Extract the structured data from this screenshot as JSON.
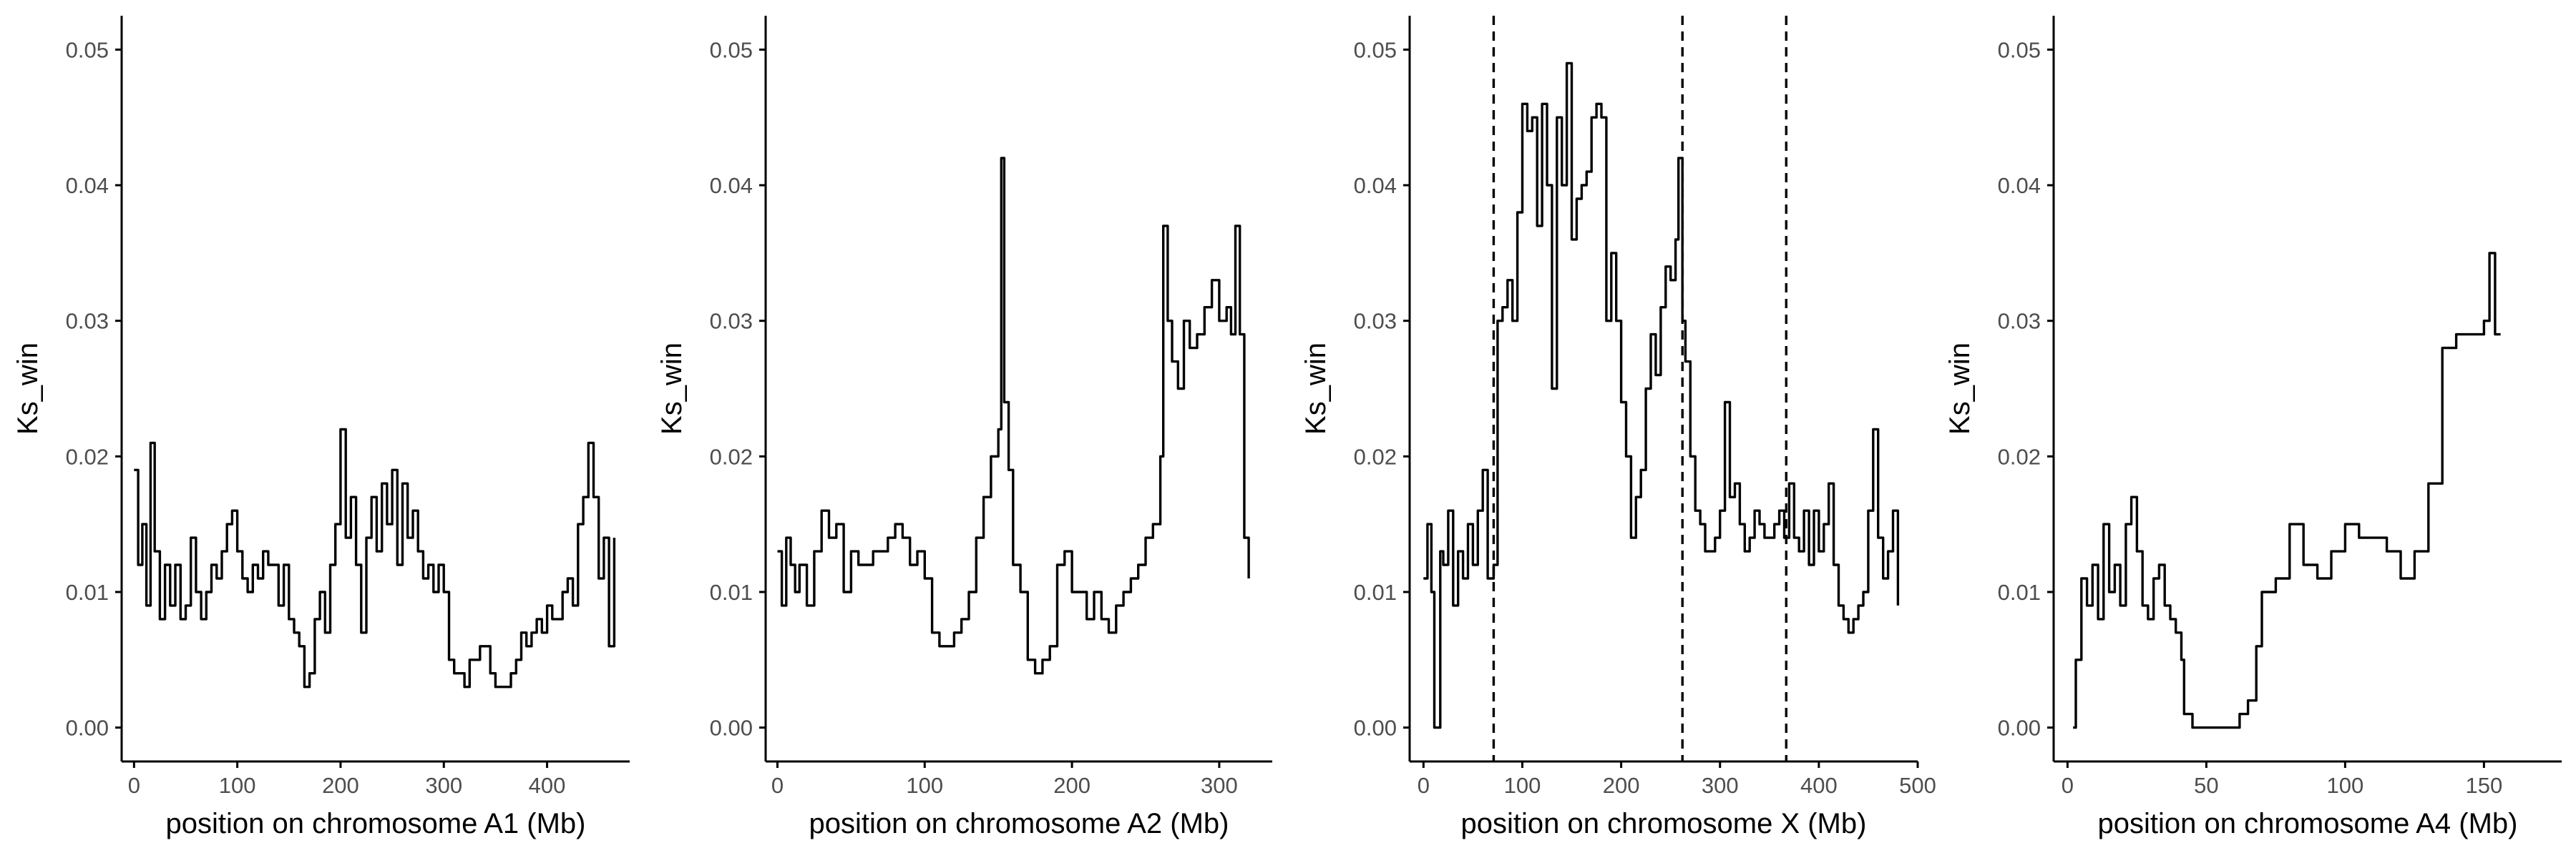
{
  "chart_data": [
    {
      "type": "line",
      "xlabel": "position on chromosome A1 (Mb)",
      "ylabel": "Ks_win",
      "xlim": [
        -12,
        480
      ],
      "ylim": [
        -0.0025,
        0.0525
      ],
      "xticks": [
        0,
        100,
        200,
        300,
        400
      ],
      "yticks": [
        "0.00",
        "0.01",
        "0.02",
        "0.03",
        "0.04",
        "0.05"
      ],
      "ytick_values": [
        0,
        0.01,
        0.02,
        0.03,
        0.04,
        0.05
      ],
      "vlines": [],
      "grid": false,
      "x": [
        0,
        4,
        8,
        12,
        16,
        20,
        25,
        30,
        35,
        40,
        45,
        50,
        55,
        60,
        65,
        70,
        75,
        80,
        85,
        90,
        95,
        100,
        105,
        110,
        115,
        120,
        125,
        130,
        135,
        140,
        145,
        150,
        155,
        160,
        165,
        170,
        175,
        180,
        185,
        190,
        195,
        200,
        205,
        210,
        215,
        220,
        225,
        230,
        235,
        240,
        245,
        250,
        255,
        260,
        265,
        270,
        275,
        280,
        285,
        290,
        295,
        300,
        305,
        310,
        315,
        320,
        325,
        330,
        335,
        340,
        345,
        350,
        355,
        360,
        365,
        370,
        375,
        380,
        385,
        390,
        395,
        400,
        405,
        410,
        415,
        420,
        425,
        430,
        435,
        440,
        445,
        450,
        455,
        460,
        465
      ],
      "y": [
        0.019,
        0.012,
        0.015,
        0.009,
        0.021,
        0.013,
        0.008,
        0.012,
        0.009,
        0.012,
        0.008,
        0.009,
        0.014,
        0.01,
        0.008,
        0.01,
        0.012,
        0.011,
        0.013,
        0.015,
        0.016,
        0.013,
        0.011,
        0.01,
        0.012,
        0.011,
        0.013,
        0.012,
        0.012,
        0.009,
        0.012,
        0.008,
        0.007,
        0.006,
        0.003,
        0.004,
        0.008,
        0.01,
        0.007,
        0.012,
        0.015,
        0.022,
        0.014,
        0.017,
        0.012,
        0.007,
        0.014,
        0.017,
        0.013,
        0.018,
        0.015,
        0.019,
        0.012,
        0.018,
        0.014,
        0.016,
        0.013,
        0.011,
        0.012,
        0.01,
        0.012,
        0.01,
        0.005,
        0.004,
        0.004,
        0.003,
        0.005,
        0.005,
        0.006,
        0.006,
        0.004,
        0.003,
        0.003,
        0.003,
        0.004,
        0.005,
        0.007,
        0.006,
        0.007,
        0.008,
        0.007,
        0.009,
        0.008,
        0.008,
        0.01,
        0.011,
        0.009,
        0.015,
        0.017,
        0.021,
        0.017,
        0.011,
        0.014,
        0.006,
        0.014
      ]
    },
    {
      "type": "line",
      "xlabel": "position on chromosome A2 (Mb)",
      "ylabel": "Ks_win",
      "xlim": [
        -8,
        336
      ],
      "ylim": [
        -0.0025,
        0.0525
      ],
      "xticks": [
        0,
        100,
        200,
        300
      ],
      "yticks": [
        "0.00",
        "0.01",
        "0.02",
        "0.03",
        "0.04",
        "0.05"
      ],
      "ytick_values": [
        0,
        0.01,
        0.02,
        0.03,
        0.04,
        0.05
      ],
      "vlines": [],
      "grid": false,
      "x": [
        0,
        3,
        6,
        9,
        12,
        15,
        20,
        25,
        30,
        35,
        40,
        45,
        50,
        55,
        60,
        65,
        70,
        75,
        80,
        85,
        90,
        95,
        100,
        105,
        110,
        115,
        120,
        125,
        130,
        135,
        140,
        145,
        150,
        152,
        154,
        157,
        160,
        165,
        170,
        175,
        180,
        185,
        190,
        195,
        200,
        205,
        210,
        215,
        220,
        225,
        230,
        235,
        240,
        245,
        250,
        255,
        260,
        262,
        265,
        268,
        272,
        276,
        280,
        285,
        290,
        295,
        300,
        305,
        308,
        311,
        314,
        317,
        320
      ],
      "y": [
        0.013,
        0.009,
        0.014,
        0.012,
        0.01,
        0.012,
        0.009,
        0.013,
        0.016,
        0.014,
        0.015,
        0.01,
        0.013,
        0.012,
        0.012,
        0.013,
        0.013,
        0.014,
        0.015,
        0.014,
        0.012,
        0.013,
        0.011,
        0.007,
        0.006,
        0.006,
        0.007,
        0.008,
        0.01,
        0.014,
        0.017,
        0.02,
        0.022,
        0.042,
        0.024,
        0.019,
        0.012,
        0.01,
        0.005,
        0.004,
        0.005,
        0.006,
        0.012,
        0.013,
        0.01,
        0.01,
        0.008,
        0.01,
        0.008,
        0.007,
        0.009,
        0.01,
        0.011,
        0.012,
        0.014,
        0.015,
        0.02,
        0.037,
        0.03,
        0.027,
        0.025,
        0.03,
        0.028,
        0.029,
        0.031,
        0.033,
        0.03,
        0.031,
        0.029,
        0.037,
        0.029,
        0.014,
        0.011
      ]
    },
    {
      "type": "line",
      "xlabel": "position on chromosome X (Mb)",
      "ylabel": "Ks_win",
      "xlim": [
        -14,
        500
      ],
      "ylim": [
        -0.0025,
        0.0525
      ],
      "xticks": [
        0,
        100,
        200,
        300,
        400,
        500
      ],
      "yticks": [
        "0.00",
        "0.01",
        "0.02",
        "0.03",
        "0.04",
        "0.05"
      ],
      "ytick_values": [
        0,
        0.01,
        0.02,
        0.03,
        0.04,
        0.05
      ],
      "vlines": [
        71,
        262,
        367
      ],
      "grid": false,
      "x": [
        0,
        4,
        8,
        11,
        14,
        17,
        20,
        25,
        30,
        35,
        40,
        45,
        50,
        55,
        60,
        65,
        71,
        75,
        80,
        85,
        90,
        95,
        100,
        105,
        110,
        115,
        120,
        125,
        130,
        135,
        140,
        145,
        150,
        155,
        160,
        165,
        170,
        175,
        180,
        185,
        190,
        195,
        200,
        205,
        210,
        215,
        220,
        225,
        230,
        235,
        240,
        245,
        250,
        255,
        258,
        262,
        265,
        270,
        275,
        280,
        285,
        290,
        295,
        300,
        305,
        310,
        315,
        320,
        325,
        330,
        335,
        340,
        345,
        350,
        355,
        360,
        365,
        370,
        375,
        380,
        385,
        390,
        395,
        400,
        405,
        410,
        415,
        420,
        425,
        430,
        435,
        440,
        445,
        450,
        455,
        460,
        465,
        470,
        475,
        480
      ],
      "y": [
        0.011,
        0.015,
        0.01,
        0.0,
        0.0,
        0.013,
        0.012,
        0.016,
        0.009,
        0.013,
        0.011,
        0.015,
        0.012,
        0.016,
        0.019,
        0.011,
        0.012,
        0.03,
        0.031,
        0.033,
        0.03,
        0.038,
        0.046,
        0.044,
        0.045,
        0.037,
        0.046,
        0.04,
        0.025,
        0.045,
        0.04,
        0.049,
        0.036,
        0.039,
        0.04,
        0.041,
        0.045,
        0.046,
        0.045,
        0.03,
        0.035,
        0.03,
        0.024,
        0.02,
        0.014,
        0.017,
        0.019,
        0.025,
        0.029,
        0.026,
        0.031,
        0.034,
        0.033,
        0.036,
        0.042,
        0.03,
        0.027,
        0.02,
        0.016,
        0.015,
        0.013,
        0.013,
        0.014,
        0.016,
        0.024,
        0.017,
        0.018,
        0.015,
        0.013,
        0.014,
        0.016,
        0.015,
        0.014,
        0.014,
        0.015,
        0.016,
        0.014,
        0.018,
        0.014,
        0.013,
        0.016,
        0.012,
        0.016,
        0.013,
        0.015,
        0.018,
        0.012,
        0.009,
        0.008,
        0.007,
        0.008,
        0.009,
        0.01,
        0.016,
        0.022,
        0.014,
        0.011,
        0.013,
        0.016,
        0.009
      ]
    },
    {
      "type": "line",
      "xlabel": "position on chromosome A4 (Mb)",
      "ylabel": "Ks_win",
      "xlim": [
        -5,
        178
      ],
      "ylim": [
        -0.0025,
        0.0525
      ],
      "xticks": [
        0,
        50,
        100,
        150
      ],
      "yticks": [
        "0.00",
        "0.01",
        "0.02",
        "0.03",
        "0.04",
        "0.05"
      ],
      "ytick_values": [
        0,
        0.01,
        0.02,
        0.03,
        0.04,
        0.05
      ],
      "vlines": [],
      "grid": false,
      "x": [
        2,
        3,
        5,
        7,
        9,
        11,
        13,
        15,
        17,
        19,
        21,
        23,
        25,
        27,
        29,
        31,
        33,
        35,
        37,
        39,
        41,
        42,
        45,
        50,
        55,
        60,
        62,
        65,
        68,
        70,
        75,
        80,
        85,
        90,
        95,
        100,
        105,
        110,
        115,
        120,
        125,
        130,
        135,
        140,
        145,
        150,
        152,
        154,
        156
      ],
      "y": [
        0.0,
        0.005,
        0.011,
        0.009,
        0.012,
        0.008,
        0.015,
        0.01,
        0.012,
        0.009,
        0.015,
        0.017,
        0.013,
        0.009,
        0.008,
        0.011,
        0.012,
        0.009,
        0.008,
        0.007,
        0.005,
        0.001,
        0.0,
        0.0,
        0.0,
        0.0,
        0.001,
        0.002,
        0.006,
        0.01,
        0.011,
        0.015,
        0.012,
        0.011,
        0.013,
        0.015,
        0.014,
        0.014,
        0.013,
        0.011,
        0.013,
        0.018,
        0.028,
        0.029,
        0.029,
        0.03,
        0.035,
        0.029,
        0.029
      ]
    }
  ]
}
